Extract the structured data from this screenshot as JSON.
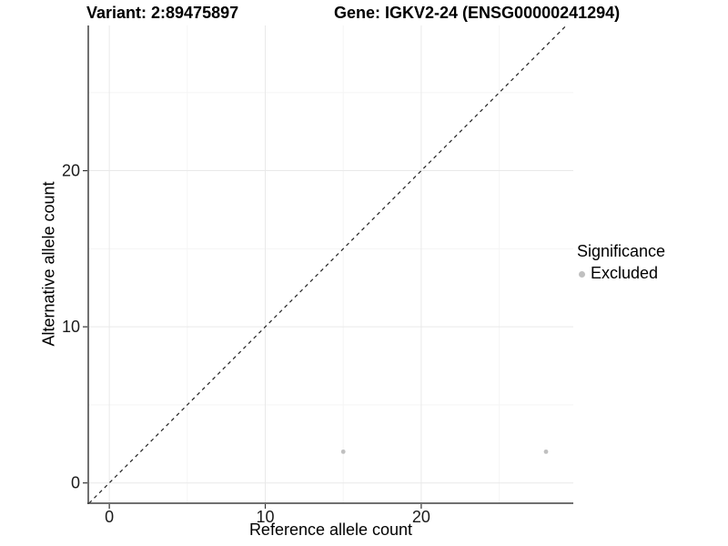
{
  "chart_data": {
    "type": "scatter",
    "title_left": "Variant: 2:89475897",
    "title_right": "Gene: IGKV2-24 (ENSG00000241294)",
    "xlabel": "Reference allele count",
    "ylabel": "Alternative allele count",
    "xlim": [
      -1.35,
      29.75
    ],
    "ylim": [
      -1.3,
      29.3
    ],
    "x_ticks": [
      0,
      10,
      20
    ],
    "y_ticks": [
      0,
      10,
      20
    ],
    "minor_ticks": [
      5,
      15,
      25
    ],
    "grid": true,
    "reference_line": {
      "type": "identity",
      "slope": 1,
      "intercept": 0,
      "style": "dashed",
      "color": "#222222"
    },
    "series": [
      {
        "name": "Excluded",
        "color": "#c0c0c0",
        "points": [
          {
            "x": 15,
            "y": 2
          },
          {
            "x": 28,
            "y": 2
          }
        ]
      }
    ],
    "legend": {
      "title": "Significance",
      "position": "right",
      "items": [
        {
          "label": "Excluded",
          "color": "#c0c0c0"
        }
      ]
    },
    "colors": {
      "background": "#ffffff",
      "grid_major": "#e9e9e9",
      "grid_minor": "#f5f5f5",
      "axis_line": "#404040",
      "tick_mark": "#333333",
      "tick_label": "#1a1a1a",
      "title": "#000000"
    }
  }
}
